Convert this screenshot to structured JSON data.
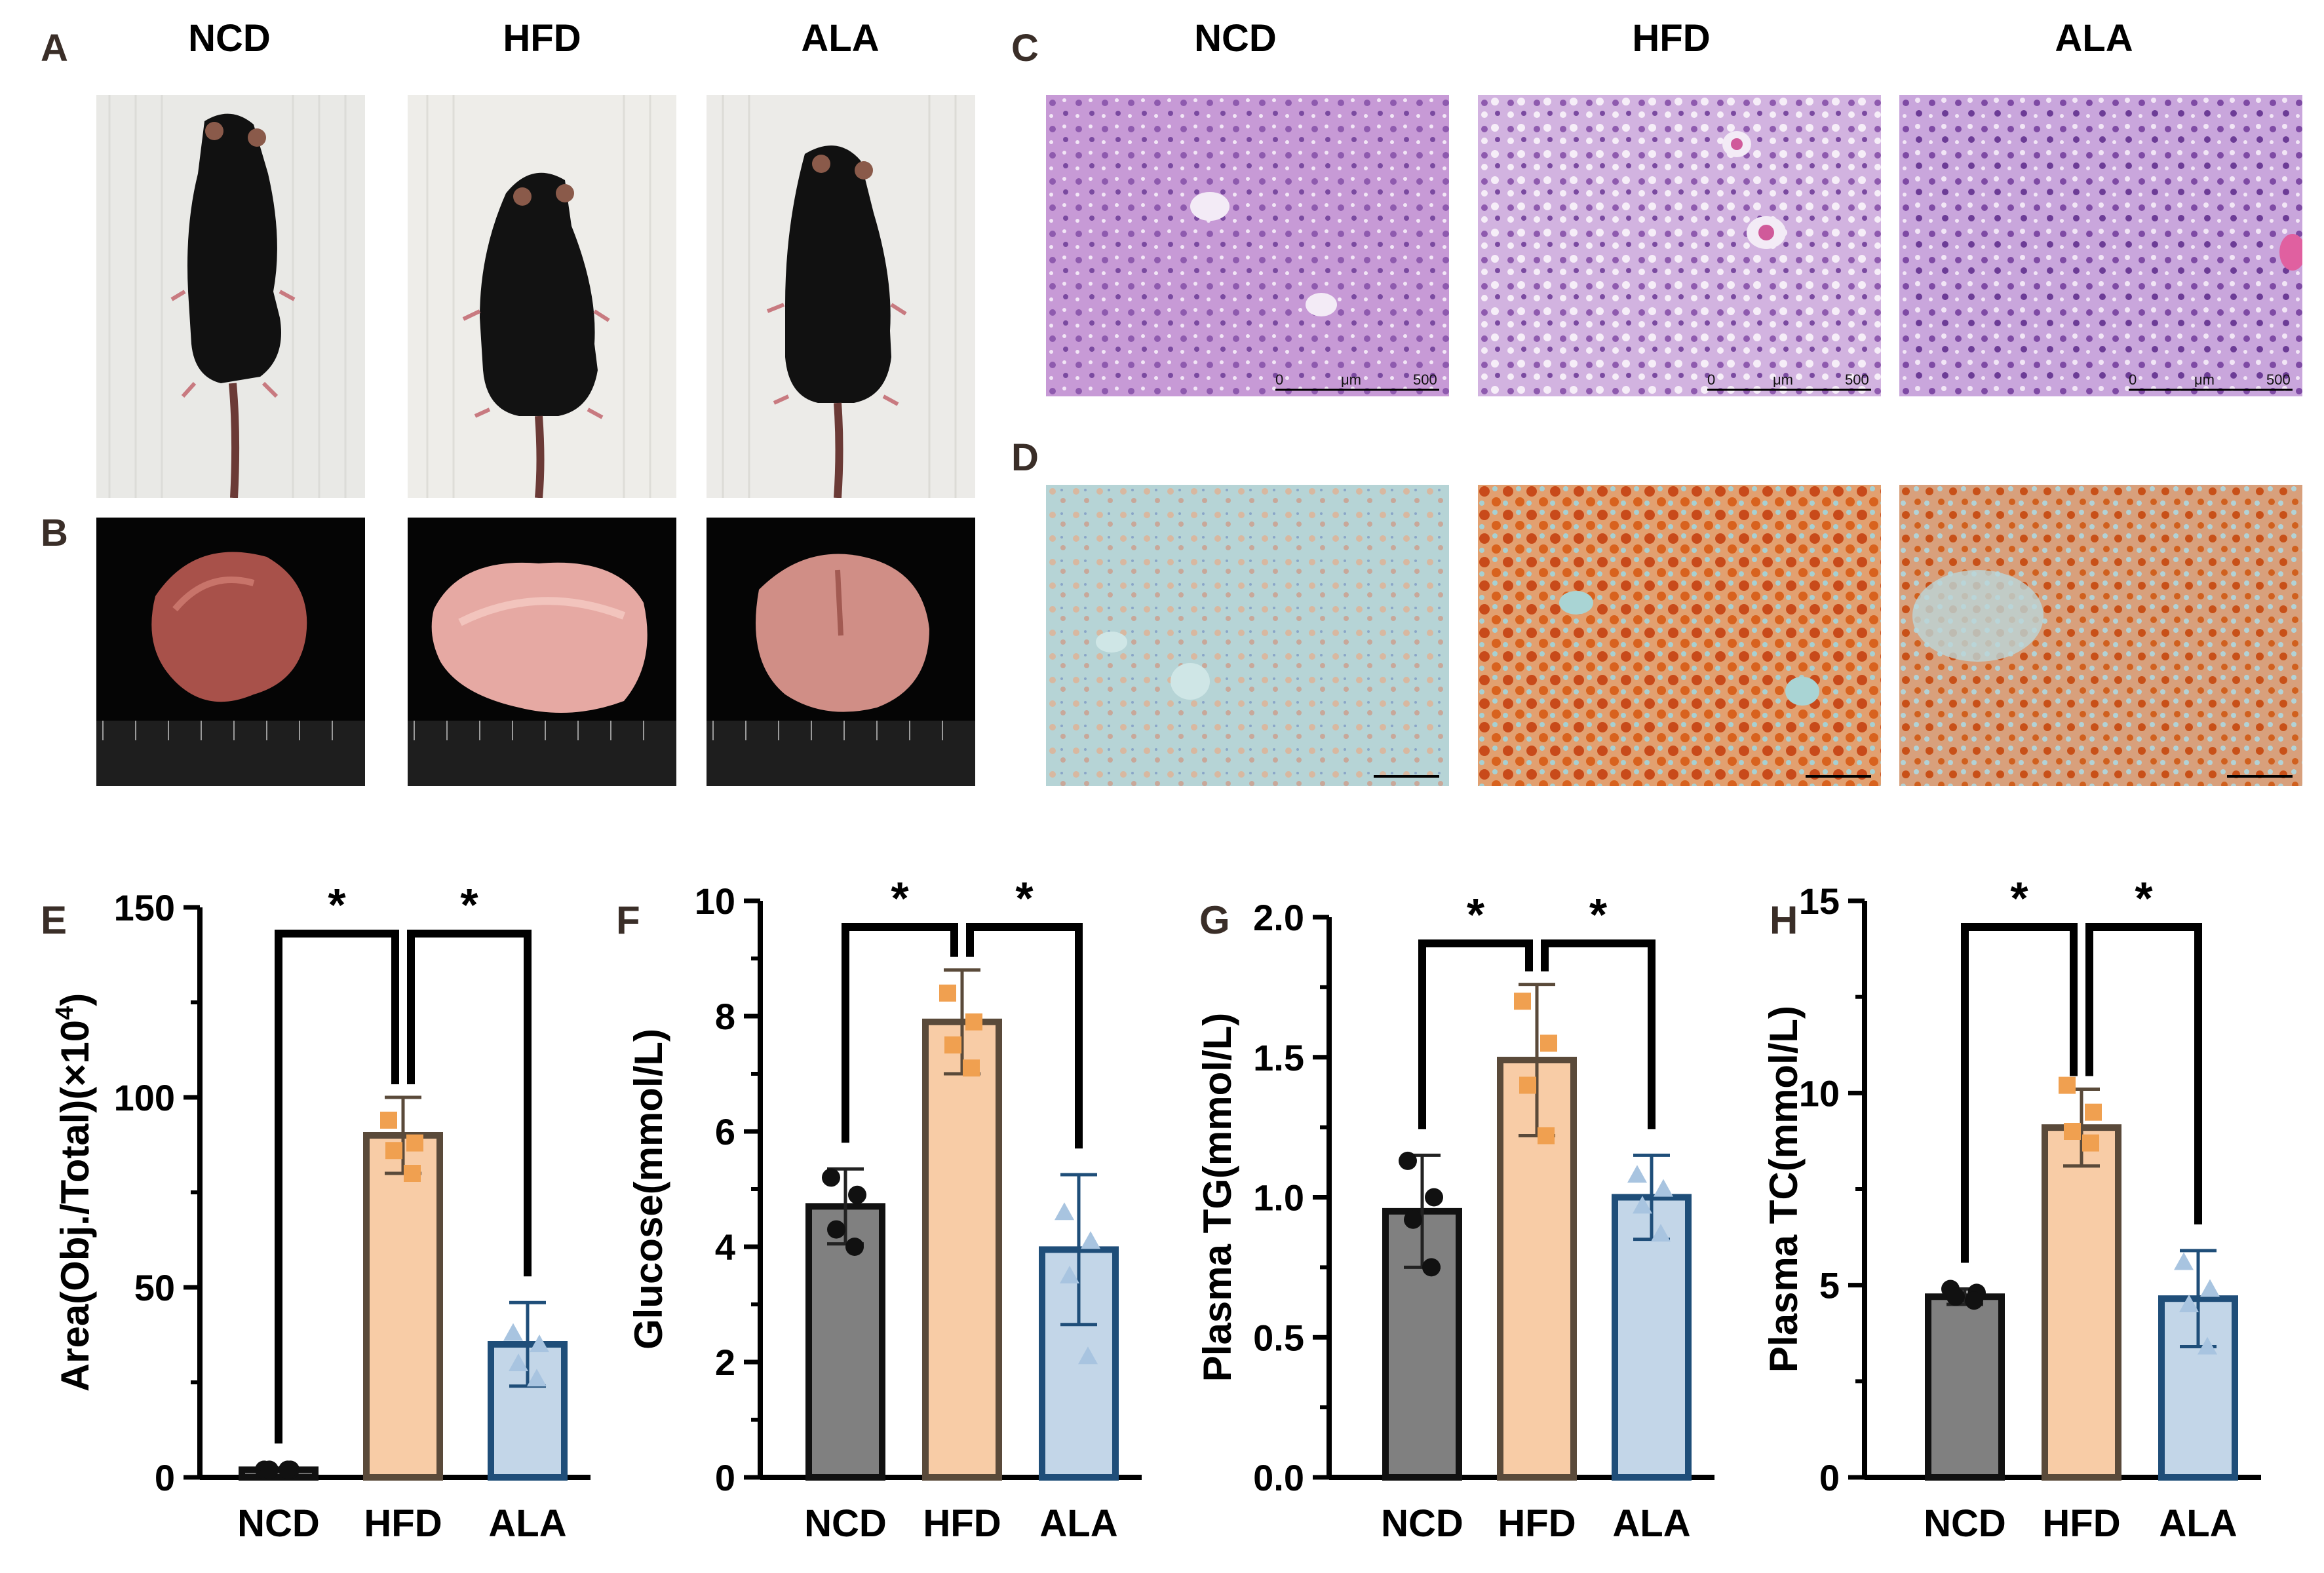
{
  "colors": {
    "ncd": "#808080",
    "hfd": "#f8cca6",
    "ala": "#c3d6e8",
    "hfd_point": "#f0a050",
    "ala_point": "#a8c4e0",
    "ncd_point": "#111111",
    "bar_edge_ncd": "#111111",
    "bar_edge_hfd": "#5a4a3a",
    "bar_edge_ala": "#1f4e79"
  },
  "panels": {
    "A": {
      "label": "A",
      "groups": [
        "NCD",
        "HFD",
        "ALA"
      ]
    },
    "B": {
      "label": "B"
    },
    "C": {
      "label": "C",
      "groups": [
        "NCD",
        "HFD",
        "ALA"
      ],
      "scale_bar": {
        "start": "0",
        "unit": "μm",
        "end": "500"
      }
    },
    "D": {
      "label": "D"
    }
  },
  "chart_data": [
    {
      "id": "E",
      "type": "bar",
      "label": "E",
      "categories": [
        "NCD",
        "HFD",
        "ALA"
      ],
      "values": [
        2,
        90,
        35
      ],
      "errors": [
        0,
        10,
        11
      ],
      "points": [
        [
          2,
          2,
          2,
          2
        ],
        [
          94,
          88,
          86,
          80
        ],
        [
          38,
          35,
          30,
          26
        ]
      ],
      "ylabel": "Area(Obj./Total)(×10",
      "ylabel_sup": "4",
      "ylabel_end": ")",
      "ylim": [
        0,
        150
      ],
      "yticks": [
        0,
        50,
        100,
        150
      ],
      "significance": [
        "*",
        "*"
      ]
    },
    {
      "id": "F",
      "type": "bar",
      "label": "F",
      "categories": [
        "NCD",
        "HFD",
        "ALA"
      ],
      "values": [
        4.7,
        7.9,
        3.95
      ],
      "errors": [
        0.65,
        0.9,
        1.3
      ],
      "points": [
        [
          5.2,
          4.9,
          4.3,
          4.0
        ],
        [
          8.4,
          7.9,
          7.5,
          7.1
        ],
        [
          4.6,
          4.1,
          3.5,
          2.1
        ]
      ],
      "ylabel": "Glucose(mmol/L)",
      "ylim": [
        0,
        10
      ],
      "yticks": [
        0,
        2,
        4,
        6,
        8,
        10
      ],
      "significance": [
        "*",
        "*"
      ]
    },
    {
      "id": "G",
      "type": "bar",
      "label": "G",
      "categories": [
        "NCD",
        "HFD",
        "ALA"
      ],
      "values": [
        0.95,
        1.49,
        1.0
      ],
      "errors": [
        0.2,
        0.27,
        0.15
      ],
      "points": [
        [
          1.13,
          1.0,
          0.92,
          0.75
        ],
        [
          1.7,
          1.55,
          1.4,
          1.22
        ],
        [
          1.08,
          1.03,
          0.97,
          0.87
        ]
      ],
      "ylabel": "Plasma TG(mmol/L)",
      "ylim": [
        0,
        2.0
      ],
      "yticks": [
        "0.0",
        "0.5",
        "1.0",
        "1.5",
        "2.0"
      ],
      "significance": [
        "*",
        "*"
      ]
    },
    {
      "id": "H",
      "type": "bar",
      "label": "H",
      "categories": [
        "NCD",
        "HFD",
        "ALA"
      ],
      "values": [
        4.7,
        9.1,
        4.65
      ],
      "errors": [
        0.2,
        1.0,
        1.25
      ],
      "points": [
        [
          4.9,
          4.8,
          4.7,
          4.6
        ],
        [
          10.2,
          9.5,
          9.0,
          8.7
        ],
        [
          5.6,
          4.9,
          4.5,
          3.4
        ]
      ],
      "ylabel": "Plasma TC(mmol/L)",
      "ylim": [
        0,
        15
      ],
      "yticks": [
        0,
        5,
        10,
        15
      ],
      "significance": [
        "*",
        "*"
      ]
    }
  ]
}
